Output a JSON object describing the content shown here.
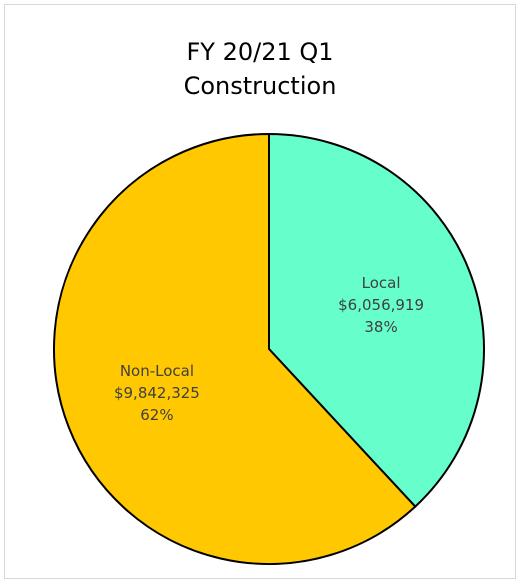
{
  "chart_data": {
    "type": "pie",
    "title_lines": [
      "FY 20/21 Q1",
      "Construction"
    ],
    "slices": [
      {
        "name": "Local",
        "value": 6056919,
        "value_label": "$6,056,919",
        "percent_label": "38%",
        "color": "#66ffcc"
      },
      {
        "name": "Non-Local",
        "value": 9842325,
        "value_label": "$9,842,325",
        "percent_label": "62%",
        "color": "#ffc800"
      }
    ],
    "start_angle_deg": 0,
    "direction": "clockwise",
    "outline_color": "#000000",
    "legend": "none"
  }
}
